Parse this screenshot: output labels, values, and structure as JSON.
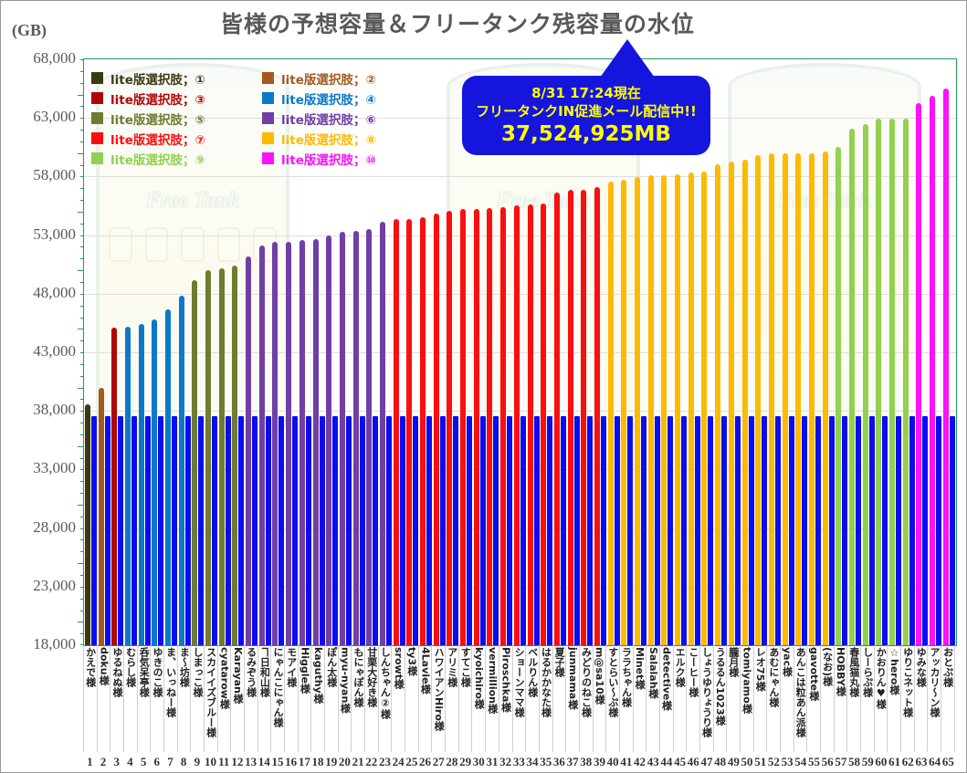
{
  "title": "皆様の予想容量＆フリータンク残容量の水位",
  "y_axis": {
    "unit_label": "(GB)",
    "min": 18000,
    "max": 68000,
    "major_step": 5000,
    "minor_step": 1000,
    "tick_labels": [
      "68,000",
      "63,000",
      "58,000",
      "53,000",
      "48,000",
      "43,000",
      "38,000",
      "33,000",
      "28,000",
      "23,000",
      "18,000"
    ]
  },
  "callout": {
    "line1": "8/31 17:24現在",
    "line2": "フリータンクIN促進メール配信中!!",
    "line3": "37,524,925MB",
    "bg_color": "#1515dd",
    "text_color": "#ffff00"
  },
  "watermark": {
    "label": "Free Tank"
  },
  "legend": {
    "items": [
      {
        "label": "lite版選択肢；①",
        "color": "#3a3a10"
      },
      {
        "label": "lite版選択肢；②",
        "color": "#a45a1e"
      },
      {
        "label": "lite版選択肢；③",
        "color": "#b00606"
      },
      {
        "label": "lite版選択肢；④",
        "color": "#0b79c8"
      },
      {
        "label": "lite版選択肢；⑤",
        "color": "#6d7c31"
      },
      {
        "label": "lite版選択肢；⑥",
        "color": "#6f3fa6"
      },
      {
        "label": "lite版選択肢；⑦",
        "color": "#f90f0f"
      },
      {
        "label": "lite版選択肢；⑧",
        "color": "#fdba02"
      },
      {
        "label": "lite版選択肢；⑨",
        "color": "#92d050"
      },
      {
        "label": "lite版選択肢；⑩",
        "color": "#fa12fa"
      }
    ]
  },
  "chart_data": {
    "type": "bar",
    "title": "皆様の予想容量＆フリータンク残容量の水位",
    "xlabel": "",
    "ylabel": "(GB)",
    "ylim": [
      18000,
      68000
    ],
    "ytick_step": 5000,
    "grid": true,
    "legend_position": "top-left",
    "free_tank_level_gb": 37525,
    "free_tank_level_mb_label": "37,524,925MB",
    "free_tank_bar_color": "#0c0cf0",
    "categories": [
      "かえで様",
      "doku様",
      "ゆるねぬ様",
      "むらし様",
      "呑気呆亭様",
      "ゆきのこ様",
      "ま、いっねー様",
      "ま～坊様",
      "しまっこ様",
      "スカイイズブルー様",
      "cyatarow様",
      "Karayan様",
      "るみぞう様",
      "ヿ日和山様",
      "にゃんこにゃん様",
      "モアイ様",
      "Higgle様",
      "kaguthy様",
      "ぽん太様",
      "myu-nyan様",
      "もにゃぽん様",
      "甘栗大好き様",
      "しんちゃん②様",
      "srowt様",
      "ty3様",
      "4Lavie様",
      "ハワイアンHiro様",
      "アリミ様",
      "すてこ様",
      "kyoichiro様",
      "vermillion様",
      "Piroschka様",
      "ショーンママ様",
      "ベルりん様",
      "はるかかなた様",
      "夏子様",
      "junmama様",
      "みどりのねこ様",
      "m@sa10様",
      "すとらい～ぷ様",
      "ララちゃん様",
      "Minet様",
      "Salalah様",
      "detective様",
      "エルク様",
      "こーヒー様",
      "しょうゆりょうり様",
      "うるるん1023様",
      "朧月様",
      "tomiyamo様",
      "レオ75様",
      "あむにゃん様",
      "yac様",
      "あんこは粒あん派様",
      "gavotte様",
      "(なお)様",
      "HOBBY様",
      "春風猫丸様",
      "しーらぷ様",
      "かおりん♥様",
      "☆hero様",
      "ゆりこネット様",
      "ゆみな様",
      "アッカリ～ン様",
      "おとぷ様"
    ],
    "values": [
      38600,
      40000,
      45100,
      45150,
      45400,
      45800,
      46650,
      47850,
      49150,
      50000,
      50200,
      50400,
      51200,
      52100,
      52400,
      52400,
      52550,
      52700,
      53000,
      53300,
      53400,
      53500,
      54150,
      54400,
      54400,
      54550,
      54850,
      55050,
      55250,
      55250,
      55300,
      55350,
      55550,
      55600,
      55700,
      56650,
      56900,
      56850,
      57100,
      57600,
      57700,
      57950,
      58100,
      58100,
      58200,
      58350,
      58400,
      59050,
      59250,
      59400,
      59850,
      60000,
      60000,
      60000,
      59950,
      60100,
      60500,
      62100,
      62450,
      62950,
      62950,
      62950,
      64300,
      64900,
      65550
    ],
    "series_category": [
      1,
      2,
      3,
      4,
      4,
      4,
      4,
      4,
      5,
      5,
      5,
      5,
      6,
      6,
      6,
      6,
      6,
      6,
      6,
      6,
      6,
      6,
      6,
      7,
      7,
      7,
      7,
      7,
      7,
      7,
      7,
      7,
      7,
      7,
      7,
      7,
      7,
      7,
      7,
      8,
      8,
      8,
      8,
      8,
      8,
      8,
      8,
      8,
      8,
      8,
      8,
      8,
      8,
      8,
      8,
      8,
      9,
      9,
      9,
      9,
      9,
      9,
      10,
      10,
      10
    ],
    "x_numbers_start": 1
  }
}
